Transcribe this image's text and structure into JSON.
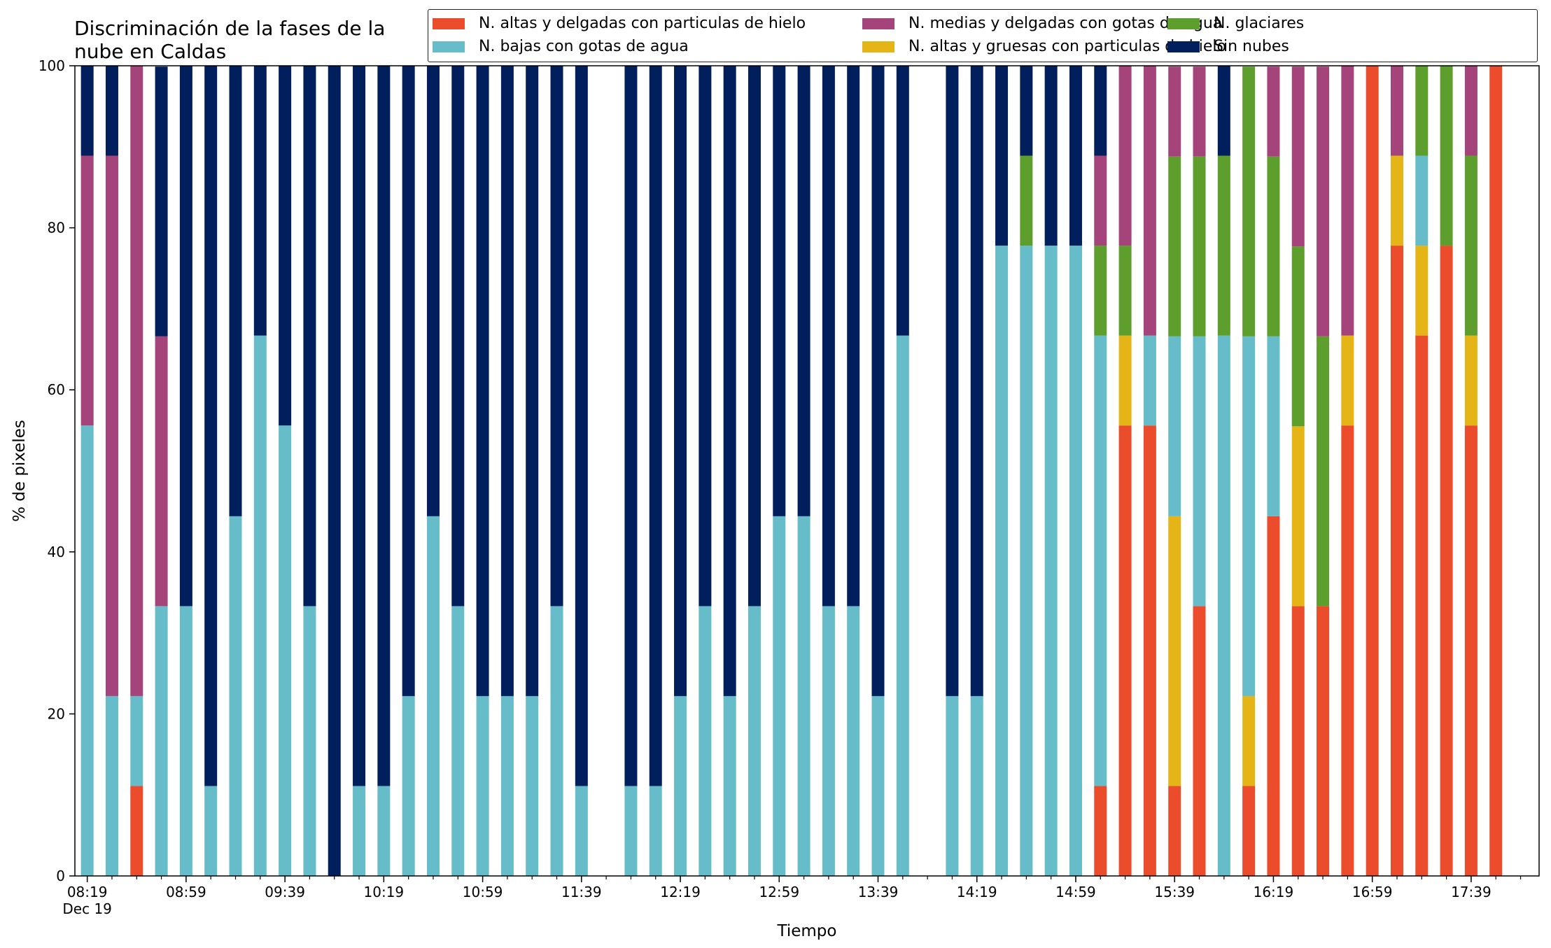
{
  "chart_data": {
    "type": "bar",
    "stacked": true,
    "title": "Discriminación de la fases de la nube en Caldas",
    "title_lines": [
      "Discriminación de la fases de la",
      "nube en Caldas"
    ],
    "xlabel": "Tiempo",
    "ylabel": "% de pixeles",
    "ylim": [
      0,
      100
    ],
    "yticks": [
      0,
      20,
      40,
      60,
      80,
      100
    ],
    "xlim": [
      0,
      118.5
    ],
    "xticks": [
      {
        "pos": 1,
        "label": "08:19",
        "sublabel": "Dec 19"
      },
      {
        "pos": 9,
        "label": "08:59"
      },
      {
        "pos": 17,
        "label": "09:39"
      },
      {
        "pos": 25,
        "label": "10:19"
      },
      {
        "pos": 33,
        "label": "10:59"
      },
      {
        "pos": 41,
        "label": "11:39"
      },
      {
        "pos": 49,
        "label": "12:19"
      },
      {
        "pos": 57,
        "label": "12:59"
      },
      {
        "pos": 65,
        "label": "13:39"
      },
      {
        "pos": 73,
        "label": "14:19"
      },
      {
        "pos": 81,
        "label": "14:59"
      },
      {
        "pos": 89,
        "label": "15:39"
      },
      {
        "pos": 97,
        "label": "16:19"
      },
      {
        "pos": 105,
        "label": "16:59"
      },
      {
        "pos": 113,
        "label": "17:39"
      }
    ],
    "grid": false,
    "legend_position": "top-right",
    "series": [
      {
        "name": "N. altas y delgadas con particulas de hielo",
        "color": "#EB4C2C"
      },
      {
        "name": "N. altas y gruesas con particulas de hielo",
        "color": "#E5B518"
      },
      {
        "name": "N. bajas con gotas de agua",
        "color": "#66BCC8"
      },
      {
        "name": "N. glaciares",
        "color": "#5E9E2D"
      },
      {
        "name": "N. medias y delgadas con gotas de agua",
        "color": "#A5447B"
      },
      {
        "name": "Sin nubes",
        "color": "#011F5C"
      }
    ],
    "legend_order": [
      0,
      2,
      4,
      1,
      3,
      5
    ],
    "bar_positions": [
      1,
      3,
      5,
      7,
      9,
      11,
      13,
      15,
      17,
      19,
      21,
      23,
      25,
      27,
      29,
      31,
      33,
      35,
      37,
      39,
      41,
      45,
      47,
      49,
      51,
      53,
      55,
      57,
      59,
      61,
      63,
      65,
      67,
      71,
      73,
      75,
      77,
      79,
      81,
      83,
      85,
      87,
      89,
      91,
      93,
      95,
      97,
      99,
      101,
      103,
      105,
      107,
      109,
      111,
      113,
      115
    ],
    "stacks": [
      [
        0,
        0,
        55.6,
        0,
        33.3,
        11.1
      ],
      [
        0,
        0,
        22.2,
        0,
        66.7,
        11.1
      ],
      [
        11.1,
        0,
        11.1,
        0,
        77.8,
        0
      ],
      [
        0,
        0,
        33.3,
        0,
        33.3,
        33.3
      ],
      [
        0,
        0,
        33.3,
        0,
        0,
        66.7
      ],
      [
        0,
        0,
        11.1,
        0,
        0,
        88.9
      ],
      [
        0,
        0,
        44.4,
        0,
        0,
        55.6
      ],
      [
        0,
        0,
        66.7,
        0,
        0,
        33.3
      ],
      [
        0,
        0,
        55.6,
        0,
        0,
        44.4
      ],
      [
        0,
        0,
        33.3,
        0,
        0,
        66.7
      ],
      [
        0,
        0,
        0,
        0,
        0,
        100
      ],
      [
        0,
        0,
        11.1,
        0,
        0,
        88.9
      ],
      [
        0,
        0,
        11.1,
        0,
        0,
        88.9
      ],
      [
        0,
        0,
        22.2,
        0,
        0,
        77.8
      ],
      [
        0,
        0,
        44.4,
        0,
        0,
        55.6
      ],
      [
        0,
        0,
        33.3,
        0,
        0,
        66.7
      ],
      [
        0,
        0,
        22.2,
        0,
        0,
        77.8
      ],
      [
        0,
        0,
        22.2,
        0,
        0,
        77.8
      ],
      [
        0,
        0,
        22.2,
        0,
        0,
        77.8
      ],
      [
        0,
        0,
        33.3,
        0,
        0,
        66.7
      ],
      [
        0,
        0,
        11.1,
        0,
        0,
        88.9
      ],
      [
        0,
        0,
        11.1,
        0,
        0,
        88.9
      ],
      [
        0,
        0,
        11.1,
        0,
        0,
        88.9
      ],
      [
        0,
        0,
        22.2,
        0,
        0,
        77.8
      ],
      [
        0,
        0,
        33.3,
        0,
        0,
        66.7
      ],
      [
        0,
        0,
        22.2,
        0,
        0,
        77.8
      ],
      [
        0,
        0,
        33.3,
        0,
        0,
        66.7
      ],
      [
        0,
        0,
        44.4,
        0,
        0,
        55.6
      ],
      [
        0,
        0,
        44.4,
        0,
        0,
        55.6
      ],
      [
        0,
        0,
        33.3,
        0,
        0,
        66.7
      ],
      [
        0,
        0,
        33.3,
        0,
        0,
        66.7
      ],
      [
        0,
        0,
        22.2,
        0,
        0,
        77.8
      ],
      [
        0,
        0,
        66.7,
        0,
        0,
        33.3
      ],
      [
        0,
        0,
        22.2,
        0,
        0,
        77.8
      ],
      [
        0,
        0,
        22.2,
        0,
        0,
        77.8
      ],
      [
        0,
        0,
        77.8,
        0,
        0,
        22.2
      ],
      [
        0,
        0,
        77.8,
        11.1,
        0,
        11.1
      ],
      [
        0,
        0,
        77.8,
        0,
        0,
        22.2
      ],
      [
        0,
        0,
        77.8,
        0,
        0,
        22.2
      ],
      [
        11.1,
        0,
        55.6,
        11.1,
        11.1,
        11.1
      ],
      [
        55.6,
        11.1,
        0,
        11.1,
        22.2,
        0
      ],
      [
        55.6,
        0,
        11.1,
        0,
        33.3,
        0
      ],
      [
        11.1,
        33.3,
        22.2,
        22.2,
        11.1,
        0
      ],
      [
        33.3,
        0,
        33.3,
        22.2,
        11.1,
        0
      ],
      [
        0,
        0,
        66.7,
        22.2,
        0,
        11.1
      ],
      [
        11.1,
        11.1,
        44.4,
        33.3,
        0,
        0
      ],
      [
        44.4,
        0,
        22.2,
        22.2,
        11.1,
        0
      ],
      [
        33.3,
        22.2,
        0,
        22.2,
        22.2,
        0
      ],
      [
        33.3,
        0,
        0,
        33.3,
        33.3,
        0
      ],
      [
        55.6,
        11.1,
        0,
        0,
        33.3,
        0
      ],
      [
        100,
        0,
        0,
        0,
        0,
        0
      ],
      [
        77.8,
        11.1,
        0,
        0,
        11.1,
        0
      ],
      [
        66.7,
        11.1,
        11.1,
        11.1,
        0,
        0
      ],
      [
        77.8,
        0,
        0,
        22.2,
        0,
        0
      ],
      [
        55.6,
        11.1,
        0,
        22.2,
        11.1,
        0
      ],
      [
        100,
        0,
        0,
        0,
        0,
        0
      ]
    ]
  }
}
